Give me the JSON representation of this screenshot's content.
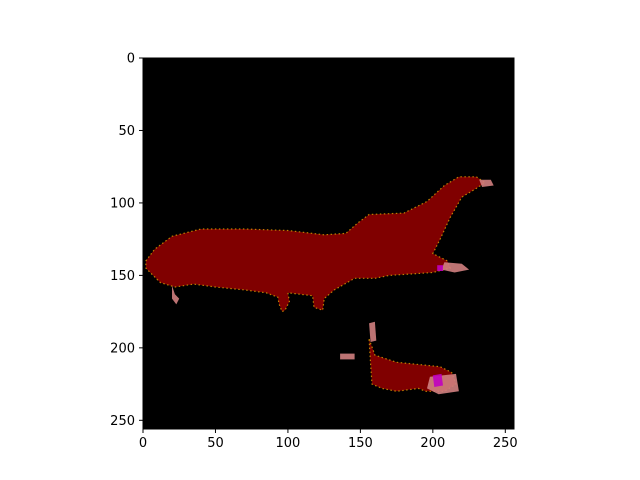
{
  "chart_data": {
    "type": "heatmap",
    "title": "",
    "xlabel": "",
    "ylabel": "",
    "xlim": [
      0,
      256
    ],
    "ylim": [
      256,
      0
    ],
    "y_inverted": true,
    "x_ticks": [
      0,
      50,
      100,
      150,
      200,
      250
    ],
    "y_ticks": [
      0,
      50,
      100,
      150,
      200,
      250
    ],
    "grid": false,
    "legend": "none",
    "image_size": [
      256,
      256
    ],
    "description_class_colors": {
      "background": "#000000",
      "primary_class": "#800000",
      "boundary_pink": "#d08080",
      "boundary_orange": "#c08000",
      "accent_magenta": "#c000c0"
    },
    "regions": [
      {
        "class": "primary_class",
        "outline": [
          [
            2,
            140
          ],
          [
            8,
            132
          ],
          [
            20,
            123
          ],
          [
            40,
            118
          ],
          [
            70,
            118
          ],
          [
            100,
            119
          ],
          [
            125,
            122
          ],
          [
            140,
            121
          ],
          [
            148,
            114
          ],
          [
            156,
            108
          ],
          [
            180,
            107
          ],
          [
            196,
            99
          ],
          [
            208,
            88
          ],
          [
            218,
            82
          ],
          [
            230,
            82
          ],
          [
            236,
            86
          ],
          [
            230,
            90
          ],
          [
            220,
            96
          ],
          [
            212,
            110
          ],
          [
            205,
            125
          ],
          [
            200,
            135
          ],
          [
            210,
            140
          ],
          [
            212,
            145
          ],
          [
            200,
            148
          ],
          [
            170,
            150
          ],
          [
            160,
            152
          ],
          [
            146,
            152
          ],
          [
            132,
            160
          ],
          [
            125,
            166
          ],
          [
            124,
            174
          ],
          [
            118,
            172
          ],
          [
            117,
            164
          ],
          [
            100,
            162
          ],
          [
            101,
            168
          ],
          [
            98,
            174
          ],
          [
            96,
            175
          ],
          [
            94,
            170
          ],
          [
            93,
            165
          ],
          [
            85,
            162
          ],
          [
            70,
            160
          ],
          [
            50,
            158
          ],
          [
            35,
            156
          ],
          [
            22,
            158
          ],
          [
            12,
            155
          ],
          [
            5,
            148
          ],
          [
            2,
            145
          ]
        ]
      },
      {
        "class": "primary_class",
        "outline": [
          [
            156,
            194
          ],
          [
            160,
            205
          ],
          [
            175,
            210
          ],
          [
            195,
            212
          ],
          [
            205,
            213
          ],
          [
            213,
            217
          ],
          [
            216,
            225
          ],
          [
            208,
            230
          ],
          [
            195,
            230
          ],
          [
            190,
            228
          ],
          [
            175,
            230
          ],
          [
            165,
            228
          ],
          [
            158,
            225
          ],
          [
            157,
            210
          ]
        ]
      }
    ],
    "boundary_marks": [
      {
        "class": "boundary_pink",
        "points": [
          [
            20,
            157
          ],
          [
            22,
            163
          ],
          [
            25,
            166
          ],
          [
            23,
            170
          ],
          [
            20,
            166
          ]
        ]
      },
      {
        "class": "boundary_pink",
        "points": [
          [
            208,
            141
          ],
          [
            220,
            142
          ],
          [
            225,
            146
          ],
          [
            215,
            148
          ],
          [
            206,
            146
          ]
        ]
      },
      {
        "class": "boundary_pink",
        "points": [
          [
            232,
            84
          ],
          [
            240,
            84
          ],
          [
            242,
            88
          ],
          [
            234,
            89
          ]
        ]
      },
      {
        "class": "boundary_pink",
        "points": [
          [
            156,
            183
          ],
          [
            160,
            182
          ],
          [
            161,
            195
          ],
          [
            157,
            196
          ]
        ]
      },
      {
        "class": "boundary_pink",
        "points": [
          [
            136,
            204
          ],
          [
            146,
            204
          ],
          [
            146,
            208
          ],
          [
            136,
            208
          ]
        ]
      },
      {
        "class": "boundary_pink",
        "points": [
          [
            198,
            220
          ],
          [
            216,
            218
          ],
          [
            218,
            230
          ],
          [
            204,
            232
          ],
          [
            196,
            228
          ]
        ]
      },
      {
        "class": "accent_magenta",
        "points": [
          [
            200,
            219
          ],
          [
            206,
            218
          ],
          [
            207,
            226
          ],
          [
            201,
            227
          ]
        ]
      },
      {
        "class": "accent_magenta",
        "points": [
          [
            203,
            143
          ],
          [
            207,
            143
          ],
          [
            207,
            147
          ],
          [
            203,
            147
          ]
        ]
      }
    ]
  }
}
